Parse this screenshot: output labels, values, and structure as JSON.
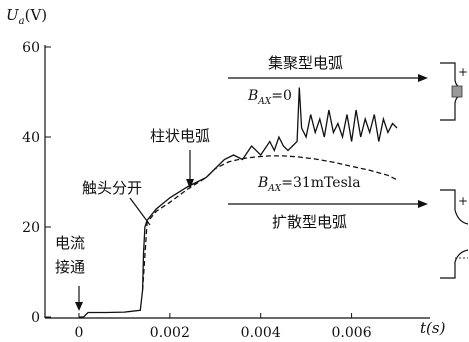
{
  "chart_data": {
    "type": "line",
    "ylabel_main": "U",
    "ylabel_sub": "a",
    "ylabel_unit": "(V)",
    "xlabel": "t(s)",
    "xlim": [
      0,
      0.007
    ],
    "ylim": [
      0,
      60
    ],
    "x_ticks": [
      {
        "value": 0,
        "label": "0"
      },
      {
        "value": 0.002,
        "label": "0.002"
      },
      {
        "value": 0.004,
        "label": "0.004"
      },
      {
        "value": 0.006,
        "label": "0.006"
      }
    ],
    "y_ticks": [
      {
        "value": 0,
        "label": "0"
      },
      {
        "value": 20,
        "label": "20"
      },
      {
        "value": 40,
        "label": "40"
      },
      {
        "value": 60,
        "label": "60"
      }
    ],
    "series": [
      {
        "name": "B_AX=0",
        "style": "solid",
        "x": [
          0,
          0.0001,
          0.0002,
          0.0006,
          0.001,
          0.00135,
          0.0014,
          0.00142,
          0.00145,
          0.0015,
          0.0017,
          0.002,
          0.0024,
          0.0028,
          0.003,
          0.0032,
          0.0034,
          0.0036,
          0.0038,
          0.004,
          0.0042,
          0.0043,
          0.0044,
          0.0045,
          0.0046,
          0.0047,
          0.0048,
          0.00485,
          0.0049,
          0.005,
          0.0051,
          0.0052,
          0.0053,
          0.0054,
          0.0055,
          0.0056,
          0.0057,
          0.0058,
          0.0059,
          0.006,
          0.0061,
          0.0062,
          0.0063,
          0.0064,
          0.0065,
          0.0066,
          0.0067,
          0.0068,
          0.0069,
          0.007
        ],
        "y": [
          0,
          0,
          1,
          1,
          1.1,
          1.5,
          6,
          14,
          20,
          21.5,
          24,
          26.5,
          29,
          31,
          33,
          35,
          36,
          35,
          38,
          36,
          39,
          37,
          40,
          38,
          37,
          38,
          39,
          51,
          42,
          40,
          45,
          41,
          44,
          40,
          46,
          41,
          43,
          40,
          45,
          39,
          46,
          40,
          44,
          41,
          45,
          39,
          44,
          41,
          43,
          42
        ]
      },
      {
        "name": "B_AX=31mTesla",
        "style": "dashed",
        "x": [
          0.0014,
          0.0015,
          0.0017,
          0.002,
          0.0024,
          0.0028,
          0.003,
          0.0033,
          0.0036,
          0.0039,
          0.0042,
          0.0045,
          0.0048,
          0.0052,
          0.0056,
          0.006,
          0.0064,
          0.0068,
          0.007
        ],
        "y": [
          6,
          21,
          23.5,
          25.5,
          28.5,
          31,
          33,
          34.5,
          35.2,
          35.6,
          35.8,
          35.8,
          35.6,
          35.1,
          34.4,
          33.5,
          32.6,
          31.5,
          30.5
        ]
      }
    ],
    "annotations": {
      "current_on": [
        "电流",
        "接通"
      ],
      "contact_open": "触头分开",
      "column_arc": "柱状电弧",
      "focused_arc": "集聚型电弧",
      "diffuse_arc": "扩散型电弧",
      "bax0_label": "=0",
      "bax31_label": "=31mTesla",
      "b_letter": "B",
      "b_sub": "AX",
      "electrode_plus_top": "+",
      "electrode_plus_bottom": "+"
    }
  }
}
